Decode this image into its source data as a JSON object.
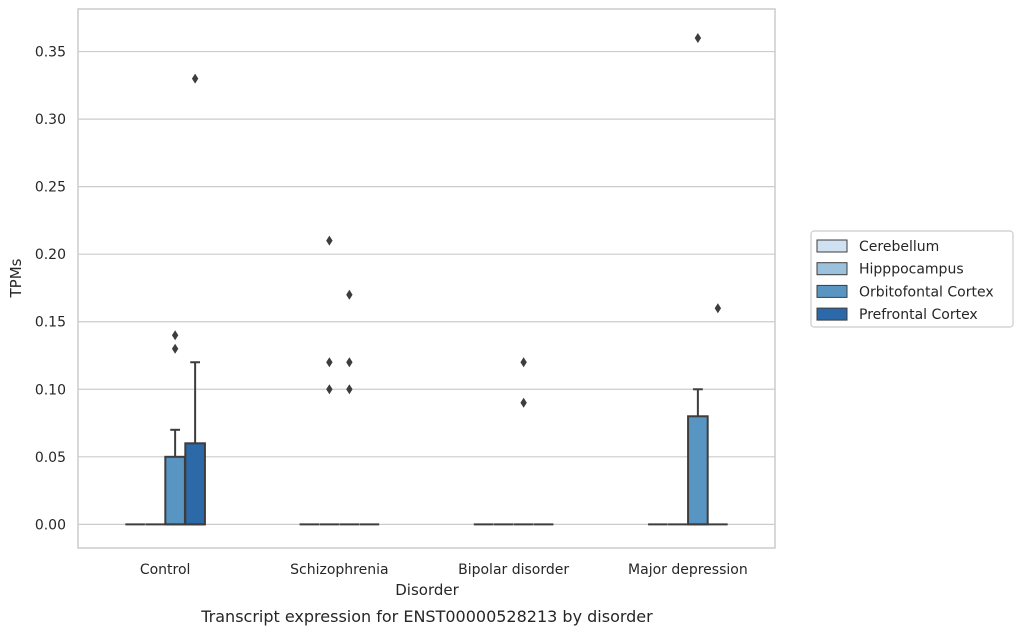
{
  "chart_data": {
    "type": "box",
    "title": "",
    "caption": "Transcript expression for ENST00000528213 by disorder",
    "xlabel": "Disorder",
    "ylabel": "TPMs",
    "ylim": [
      -0.0175,
      0.3815
    ],
    "yticks": [
      0.0,
      0.05,
      0.1,
      0.15,
      0.2,
      0.25,
      0.3,
      0.35
    ],
    "ytick_labels": [
      "0.00",
      "0.05",
      "0.10",
      "0.15",
      "0.20",
      "0.25",
      "0.30",
      "0.35"
    ],
    "grid": true,
    "legend_position": "right",
    "categories": [
      "Control",
      "Schizophrenia",
      "Bipolar disorder",
      "Major depression"
    ],
    "series": [
      {
        "name": "Cerebellum",
        "color": "#d0e1f2",
        "boxes": [
          {
            "q1": 0,
            "median": 0,
            "q3": 0,
            "whisker_low": 0,
            "whisker_high": 0,
            "outliers": []
          },
          {
            "q1": 0,
            "median": 0,
            "q3": 0,
            "whisker_low": 0,
            "whisker_high": 0,
            "outliers": []
          },
          {
            "q1": 0,
            "median": 0,
            "q3": 0,
            "whisker_low": 0,
            "whisker_high": 0,
            "outliers": []
          },
          {
            "q1": 0,
            "median": 0,
            "q3": 0,
            "whisker_low": 0,
            "whisker_high": 0,
            "outliers": []
          }
        ]
      },
      {
        "name": "Hipppocampus",
        "color": "#9bc1dd",
        "boxes": [
          {
            "q1": 0,
            "median": 0,
            "q3": 0,
            "whisker_low": 0,
            "whisker_high": 0,
            "outliers": []
          },
          {
            "q1": 0,
            "median": 0,
            "q3": 0,
            "whisker_low": 0,
            "whisker_high": 0,
            "outliers": [
              0.21,
              0.12,
              0.1
            ]
          },
          {
            "q1": 0,
            "median": 0,
            "q3": 0,
            "whisker_low": 0,
            "whisker_high": 0,
            "outliers": []
          },
          {
            "q1": 0,
            "median": 0,
            "q3": 0,
            "whisker_low": 0,
            "whisker_high": 0,
            "outliers": []
          }
        ]
      },
      {
        "name": "Orbitofontal Cortex",
        "color": "#5995c3",
        "boxes": [
          {
            "q1": 0,
            "median": 0,
            "q3": 0.05,
            "whisker_low": 0,
            "whisker_high": 0.07,
            "outliers": [
              0.14,
              0.13
            ]
          },
          {
            "q1": 0,
            "median": 0,
            "q3": 0,
            "whisker_low": 0,
            "whisker_high": 0,
            "outliers": [
              0.17,
              0.12,
              0.1
            ]
          },
          {
            "q1": 0,
            "median": 0,
            "q3": 0,
            "whisker_low": 0,
            "whisker_high": 0,
            "outliers": [
              0.12,
              0.09
            ]
          },
          {
            "q1": 0,
            "median": 0,
            "q3": 0.08,
            "whisker_low": 0,
            "whisker_high": 0.1,
            "outliers": [
              0.36
            ]
          }
        ]
      },
      {
        "name": "Prefrontal Cortex",
        "color": "#2c69a8",
        "boxes": [
          {
            "q1": 0,
            "median": 0,
            "q3": 0.06,
            "whisker_low": 0,
            "whisker_high": 0.12,
            "outliers": [
              0.33
            ]
          },
          {
            "q1": 0,
            "median": 0,
            "q3": 0,
            "whisker_low": 0,
            "whisker_high": 0,
            "outliers": []
          },
          {
            "q1": 0,
            "median": 0,
            "q3": 0,
            "whisker_low": 0,
            "whisker_high": 0,
            "outliers": []
          },
          {
            "q1": 0,
            "median": 0,
            "q3": 0,
            "whisker_low": 0,
            "whisker_high": 0,
            "outliers": [
              0.16
            ]
          }
        ]
      }
    ]
  }
}
